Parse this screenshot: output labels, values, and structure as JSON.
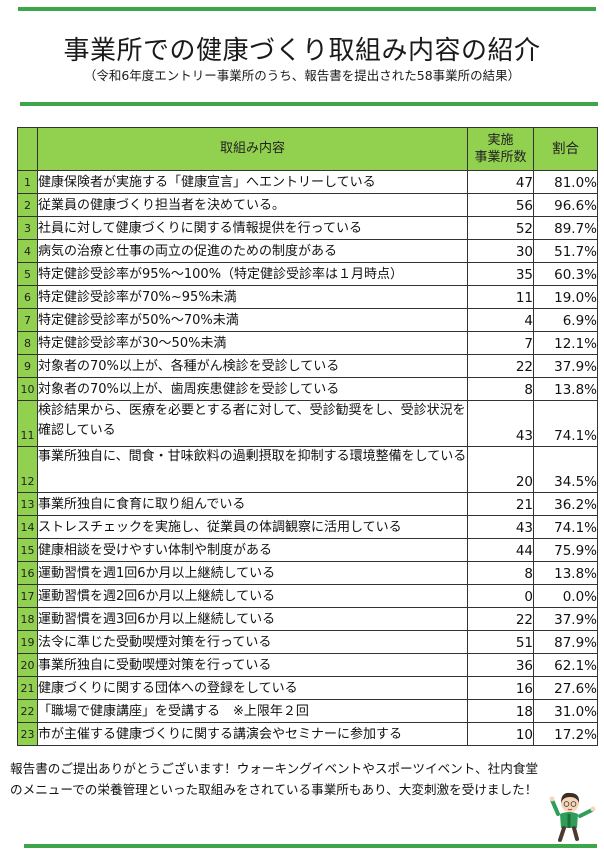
{
  "header": {
    "title": "事業所での健康づくり取組み内容の紹介",
    "subtitle": "（令和6年度エントリー事業所のうち、報告書を提出された58事業所の結果）"
  },
  "colors": {
    "accent_green": "#3fa54a",
    "header_fill": "#92d050"
  },
  "table": {
    "columns": {
      "content": "取組み内容",
      "count_line1": "実施",
      "count_line2": "事業所数",
      "ratio": "割合"
    },
    "rows": [
      {
        "no": "1",
        "text": "健康保険者が実施する「健康宣言」へエントリーしている",
        "count": "47",
        "pct": "81.0%"
      },
      {
        "no": "2",
        "text": "従業員の健康づくり担当者を決めている。",
        "count": "56",
        "pct": "96.6%"
      },
      {
        "no": "3",
        "text": "社員に対して健康づくりに関する情報提供を行っている",
        "count": "52",
        "pct": "89.7%"
      },
      {
        "no": "4",
        "text": "病気の治療と仕事の両立の促進のための制度がある",
        "count": "30",
        "pct": "51.7%"
      },
      {
        "no": "5",
        "text": "特定健診受診率が95%～100%（特定健診受診率は１月時点）",
        "count": "35",
        "pct": "60.3%"
      },
      {
        "no": "6",
        "text": "特定健診受診率が70%~95%未満",
        "count": "11",
        "pct": "19.0%"
      },
      {
        "no": "7",
        "text": "特定健診受診率が50%～70%未満",
        "count": "4",
        "pct": "6.9%"
      },
      {
        "no": "8",
        "text": "特定健診受診率が30～50%未満",
        "count": "7",
        "pct": "12.1%"
      },
      {
        "no": "9",
        "text": "対象者の70%以上が、各種がん検診を受診している",
        "count": "22",
        "pct": "37.9%"
      },
      {
        "no": "10",
        "text": "対象者の70%以上が、歯周疾患健診を受診している",
        "count": "8",
        "pct": "13.8%"
      },
      {
        "no": "11",
        "text": "検診結果から、医療を必要とする者に対して、受診勧奨をし、受診状況を確認している",
        "count": "43",
        "pct": "74.1%"
      },
      {
        "no": "12",
        "text": "事業所独自に、間食・甘味飲料の過剰摂取を抑制する環境整備をしている",
        "count": "20",
        "pct": "34.5%"
      },
      {
        "no": "13",
        "text": "事業所独自に食育に取り組んでいる",
        "count": "21",
        "pct": "36.2%"
      },
      {
        "no": "14",
        "text": "ストレスチェックを実施し、従業員の体調観察に活用している",
        "count": "43",
        "pct": "74.1%"
      },
      {
        "no": "15",
        "text": "健康相談を受けやすい体制や制度がある",
        "count": "44",
        "pct": "75.9%"
      },
      {
        "no": "16",
        "text": "運動習慣を週1回6か月以上継続している",
        "count": "8",
        "pct": "13.8%"
      },
      {
        "no": "17",
        "text": "運動習慣を週2回6か月以上継続している",
        "count": "0",
        "pct": "0.0%"
      },
      {
        "no": "18",
        "text": "運動習慣を週3回6か月以上継続している",
        "count": "22",
        "pct": "37.9%"
      },
      {
        "no": "19",
        "text": "法令に準じた受動喫煙対策を行っている",
        "count": "51",
        "pct": "87.9%"
      },
      {
        "no": "20",
        "text": "事業所独自に受動喫煙対策を行っている",
        "count": "36",
        "pct": "62.1%"
      },
      {
        "no": "21",
        "text": "健康づくりに関する団体への登録をしている",
        "count": "16",
        "pct": "27.6%"
      },
      {
        "no": "22",
        "text": "「職場で健康講座」を受講する　※上限年２回",
        "count": "18",
        "pct": "31.0%"
      },
      {
        "no": "23",
        "text": "市が主催する健康づくりに関する講演会やセミナーに参加する",
        "count": "10",
        "pct": "17.2%"
      }
    ]
  },
  "footer": {
    "line1": "報告書のご提出ありがとうございます！ウォーキングイベントやスポーツイベント、社内食堂",
    "line2": "のメニューでの栄養管理といった取組みをされている事業所もあり、大変刺激を受けました！"
  },
  "mascot": {
    "icon": "cheering-character-illustration"
  }
}
